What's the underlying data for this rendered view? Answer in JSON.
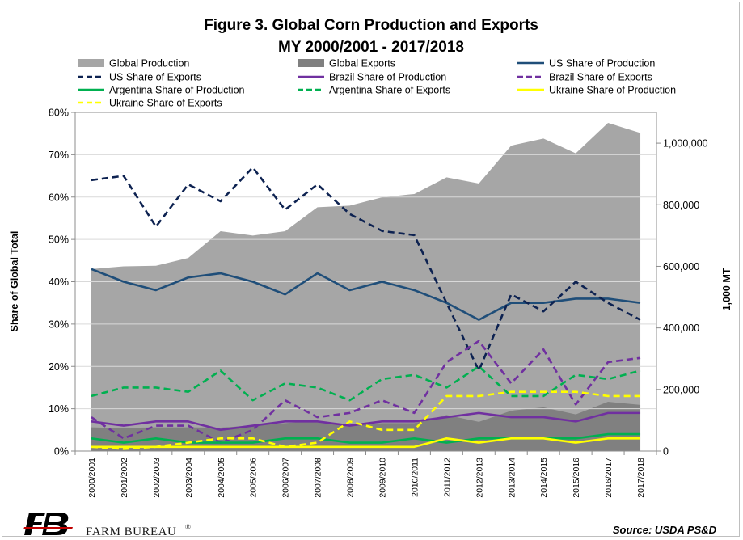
{
  "chart_data": {
    "type": "line",
    "title": "Figure 3. Global Corn Production and Exports",
    "subtitle": "MY 2000/2001 - 2017/2018",
    "ylabel": "Share of Global Total",
    "y2label": "1,000 MT",
    "ylim": [
      0,
      80
    ],
    "y_ticks": [
      "0%",
      "10%",
      "20%",
      "30%",
      "40%",
      "50%",
      "60%",
      "70%",
      "80%"
    ],
    "y2lim": [
      0,
      1100000
    ],
    "y2_ticks": [
      "0",
      "200,000",
      "400,000",
      "600,000",
      "800,000",
      "1,000,000"
    ],
    "grid": true,
    "legend_position": "top",
    "categories": [
      "2000/2001",
      "2001/2002",
      "2002/2003",
      "2003/2004",
      "2004/2005",
      "2005/2006",
      "2006/2007",
      "2007/2008",
      "2008/2009",
      "2009/2010",
      "2010/2011",
      "2011/2012",
      "2012/2013",
      "2013/2014",
      "2014/2015",
      "2015/2016",
      "2016/2017",
      "2017/2018"
    ],
    "area_series": [
      {
        "name": "Global Production",
        "color": "#a6a6a6",
        "axis": "right",
        "values": [
          591000,
          600000,
          602000,
          627000,
          714000,
          700000,
          714000,
          792000,
          797000,
          824000,
          835000,
          889000,
          869000,
          992000,
          1015000,
          967000,
          1066000,
          1033000
        ]
      },
      {
        "name": "Global Exports",
        "color": "#808080",
        "axis": "right",
        "values": [
          77000,
          75000,
          77000,
          77000,
          76000,
          83000,
          91000,
          98000,
          83000,
          91000,
          91000,
          117000,
          95000,
          131000,
          142000,
          119000,
          160000,
          150000
        ]
      }
    ],
    "series": [
      {
        "name": "US Share of Production",
        "color": "#1f4e79",
        "dash": "solid",
        "values": [
          43,
          40,
          38,
          41,
          42,
          40,
          37,
          42,
          38,
          40,
          38,
          35,
          31,
          35,
          35,
          36,
          36,
          35
        ]
      },
      {
        "name": "US Share of Exports",
        "color": "#0d2251",
        "dash": "dashed",
        "values": [
          64,
          65,
          53,
          63,
          59,
          67,
          57,
          63,
          56,
          52,
          51,
          35,
          19,
          37,
          33,
          40,
          35,
          31
        ]
      },
      {
        "name": "Brazil Share of Production",
        "color": "#7030a0",
        "dash": "solid",
        "values": [
          7,
          6,
          7,
          7,
          5,
          6,
          7,
          7,
          6,
          7,
          7,
          8,
          9,
          8,
          8,
          7,
          9,
          9
        ]
      },
      {
        "name": "Brazil Share of Exports",
        "color": "#7030a0",
        "dash": "dashed",
        "values": [
          8,
          3,
          6,
          6,
          2,
          5,
          12,
          8,
          9,
          12,
          9,
          21,
          26,
          16,
          24,
          11,
          21,
          22
        ]
      },
      {
        "name": "Argentina Share of Production",
        "color": "#00b050",
        "dash": "solid",
        "values": [
          3,
          2,
          3,
          2,
          2,
          2,
          3,
          3,
          2,
          2,
          3,
          2,
          3,
          3,
          3,
          3,
          4,
          4
        ]
      },
      {
        "name": "Argentina Share of Exports",
        "color": "#00b050",
        "dash": "dashed",
        "values": [
          13,
          15,
          15,
          14,
          19,
          12,
          16,
          15,
          12,
          17,
          18,
          15,
          20,
          13,
          13,
          18,
          17,
          19
        ]
      },
      {
        "name": "Ukraine Share of Production",
        "color": "#ffff00",
        "dash": "solid",
        "values": [
          1,
          1,
          1,
          1,
          1,
          1,
          1,
          1,
          1,
          1,
          1,
          3,
          2,
          3,
          3,
          2,
          3,
          3
        ]
      },
      {
        "name": "Ukraine Share of Exports",
        "color": "#ffff00",
        "dash": "dashed",
        "values": [
          1,
          0.5,
          1,
          2,
          3,
          3,
          1,
          2,
          7,
          5,
          5,
          13,
          13,
          14,
          14,
          14,
          13,
          13
        ]
      }
    ]
  },
  "footer": {
    "brand": "FARM BUREAU",
    "brand_mark": "®",
    "source": "Source:  USDA PS&D"
  }
}
